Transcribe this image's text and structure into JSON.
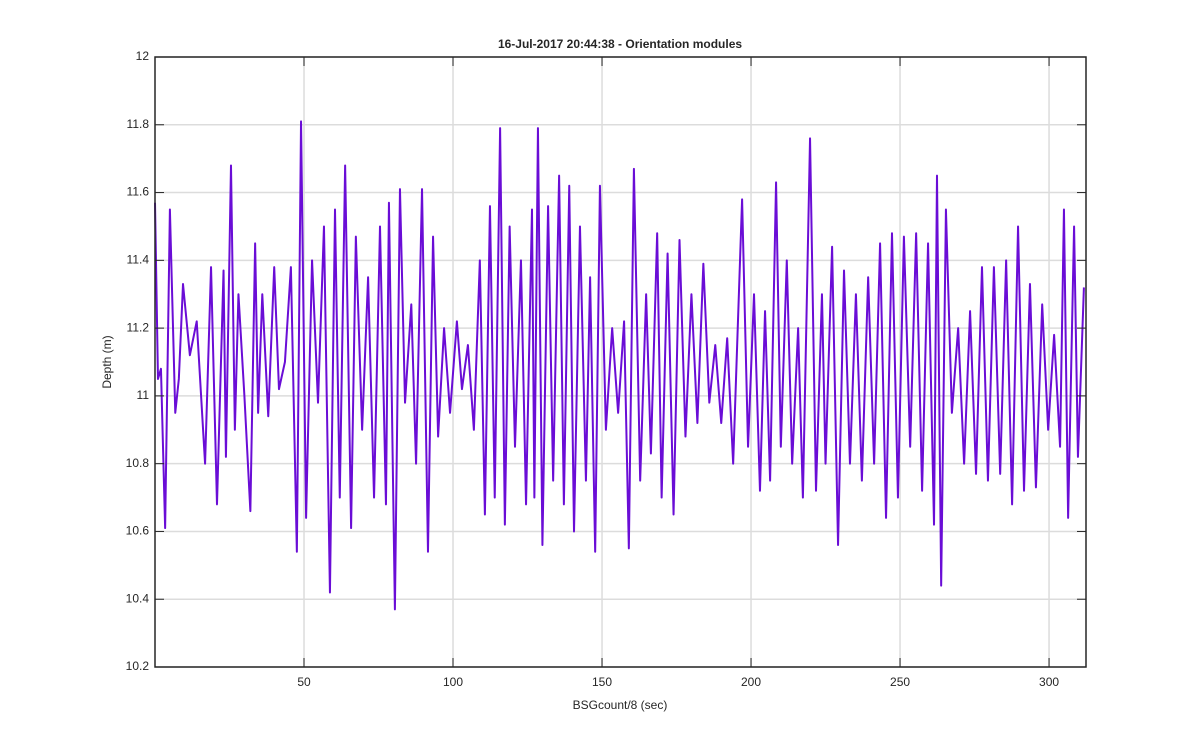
{
  "chart_data": {
    "type": "line",
    "title": "16-Jul-2017 20:44:38 - Orientation modules",
    "x_label": "BSGcount/8 (sec)",
    "y_label": "Depth (m)",
    "xlim": [
      0,
      312.4
    ],
    "ylim": [
      10.2,
      12
    ],
    "xticks": [
      50,
      100,
      150,
      200,
      250,
      300
    ],
    "yticks": [
      10.2,
      10.4,
      10.6,
      10.8,
      11,
      11.2,
      11.4,
      11.6,
      11.8,
      12
    ],
    "grid": true,
    "x": [
      0,
      1,
      2,
      3.4,
      5,
      6.8,
      8,
      9.4,
      11.7,
      14,
      16.8,
      18.8,
      20.8,
      23,
      23.8,
      25.5,
      26.8,
      28,
      30,
      32,
      33.6,
      34.6,
      36,
      38,
      40,
      41.6,
      43.6,
      45.6,
      47.6,
      49,
      50.7,
      52.7,
      54.7,
      56.7,
      58.7,
      60.4,
      62,
      63.8,
      65.8,
      67.4,
      69.5,
      71.5,
      73.5,
      75.5,
      77.5,
      78.5,
      80.5,
      82.2,
      83.9,
      86,
      87.6,
      89.6,
      91.6,
      93.3,
      95,
      97,
      99,
      101.3,
      103,
      105,
      107,
      109,
      110.7,
      112.4,
      114,
      115.8,
      117.4,
      119,
      120.8,
      122.8,
      124.5,
      126.5,
      127.3,
      128.5,
      130,
      131.9,
      133.6,
      135.6,
      137.2,
      139,
      140.6,
      142.6,
      144.6,
      146,
      147.7,
      149.3,
      151.3,
      153.4,
      155.4,
      157.4,
      159,
      160.7,
      162.8,
      164.8,
      166.4,
      168.5,
      170,
      172,
      174,
      176,
      178,
      180,
      182,
      184,
      186,
      188,
      190,
      192,
      194,
      197,
      199,
      201,
      203,
      204.7,
      206.4,
      208.4,
      210,
      212,
      213.8,
      215.8,
      217.4,
      219.8,
      221.8,
      223.8,
      225,
      227.2,
      229.2,
      231.2,
      233.2,
      235.2,
      237.2,
      239.3,
      241.3,
      243.3,
      245.3,
      247.3,
      249.3,
      251.3,
      253.4,
      255.4,
      257.4,
      259.4,
      261.4,
      262.4,
      263.8,
      265.4,
      267.4,
      269.5,
      271.5,
      273.5,
      275.5,
      277.5,
      279.5,
      281.5,
      283.6,
      285.6,
      287.6,
      289.6,
      291.6,
      293.6,
      295.6,
      297.7,
      299.7,
      301.7,
      303.7,
      305,
      306.4,
      308.4,
      309.7,
      311.7
    ],
    "series": [
      {
        "name": "Depth",
        "color": "#6a0dd6",
        "values": [
          11.57,
          11.05,
          11.08,
          10.61,
          11.55,
          10.95,
          11.05,
          11.33,
          11.12,
          11.22,
          10.8,
          11.38,
          10.68,
          11.37,
          10.82,
          11.68,
          10.9,
          11.3,
          11.0,
          10.66,
          11.45,
          10.95,
          11.3,
          10.94,
          11.38,
          11.02,
          11.1,
          11.38,
          10.54,
          11.81,
          10.64,
          11.4,
          10.98,
          11.5,
          10.42,
          11.55,
          10.7,
          11.68,
          10.61,
          11.47,
          10.9,
          11.35,
          10.7,
          11.5,
          10.68,
          11.57,
          10.37,
          11.61,
          10.98,
          11.27,
          10.8,
          11.61,
          10.54,
          11.47,
          10.88,
          11.2,
          10.95,
          11.22,
          11.02,
          11.15,
          10.9,
          11.4,
          10.65,
          11.56,
          10.7,
          11.79,
          10.62,
          11.5,
          10.85,
          11.4,
          10.68,
          11.55,
          10.7,
          11.79,
          10.56,
          11.56,
          10.75,
          11.65,
          10.68,
          11.62,
          10.6,
          11.5,
          10.75,
          11.35,
          10.54,
          11.62,
          10.9,
          11.2,
          10.95,
          11.22,
          10.55,
          11.67,
          10.75,
          11.3,
          10.83,
          11.48,
          10.7,
          11.42,
          10.65,
          11.46,
          10.88,
          11.3,
          10.92,
          11.39,
          10.98,
          11.15,
          10.92,
          11.17,
          10.8,
          11.58,
          10.85,
          11.3,
          10.72,
          11.25,
          10.75,
          11.63,
          10.85,
          11.4,
          10.8,
          11.2,
          10.7,
          11.76,
          10.72,
          11.3,
          10.8,
          11.44,
          10.56,
          11.37,
          10.8,
          11.3,
          10.75,
          11.35,
          10.8,
          11.45,
          10.64,
          11.48,
          10.7,
          11.47,
          10.85,
          11.48,
          10.72,
          11.45,
          10.62,
          11.65,
          10.44,
          11.55,
          10.95,
          11.2,
          10.8,
          11.25,
          10.77,
          11.38,
          10.75,
          11.38,
          10.77,
          11.4,
          10.68,
          11.5,
          10.72,
          11.33,
          10.73,
          11.27,
          10.9,
          11.18,
          10.85,
          11.55,
          10.64,
          11.5,
          10.82,
          11.32
        ]
      }
    ]
  }
}
